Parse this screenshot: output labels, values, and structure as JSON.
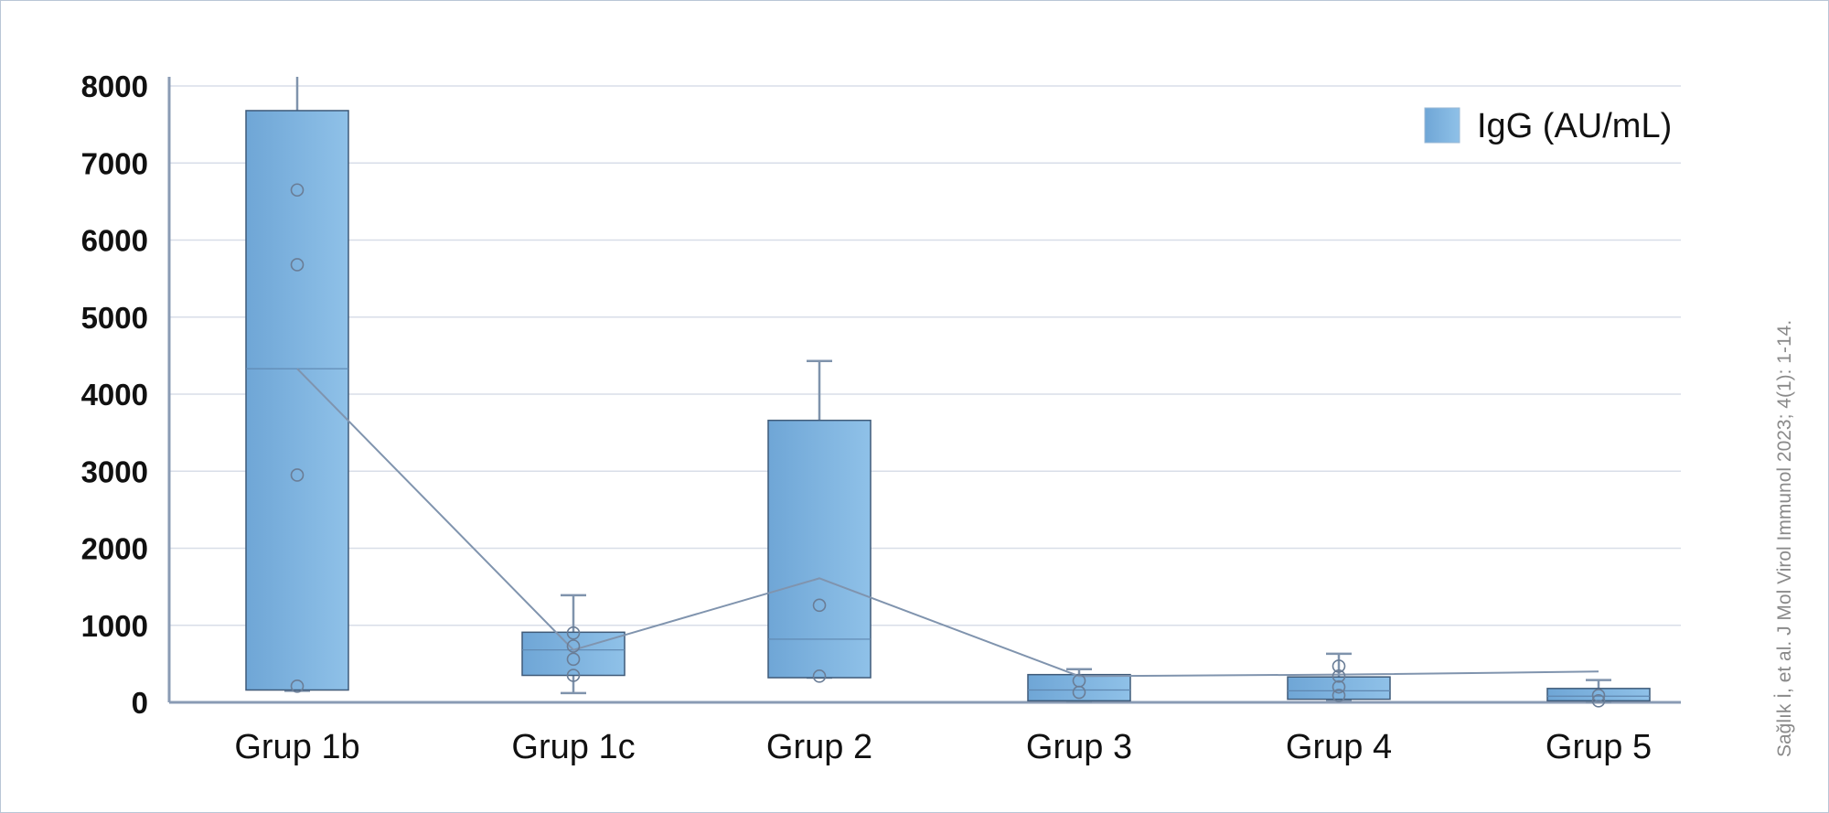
{
  "citation": "Sağlık İ, et al. J Mol Virol Immunol 2023; 4(1): 1-14.",
  "colors": {
    "box_fill_start": "#6fa6d6",
    "box_fill_end": "#8fc1e8",
    "box_stroke": "#3f5a78",
    "whisker": "#7f93ac",
    "mean_line": "#8094ae",
    "grid": "#d8dee8",
    "axis": "#8a9bb4"
  },
  "chart_data": {
    "type": "box",
    "legend": {
      "label": "IgG (AU/mL)",
      "position": "top-right"
    },
    "categories": [
      "Grup 1b",
      "Grup 1c",
      "Grup 2",
      "Grup 3",
      "Grup 4",
      "Grup 5"
    ],
    "yticks": [
      "0",
      "1000",
      "2000",
      "3000",
      "4000",
      "5000",
      "6000",
      "7000",
      "8000"
    ],
    "ylim": [
      0,
      8000
    ],
    "grid": true,
    "series": [
      {
        "name": "IgG (AU/mL)",
        "boxes": [
          {
            "category": "Grup 1b",
            "min": 150,
            "q1": 160,
            "median": 4330,
            "q3": 7680,
            "max": 8130,
            "mean": 4330,
            "points": [
              210,
              2950,
              5680,
              6650
            ]
          },
          {
            "category": "Grup 1c",
            "min": 120,
            "q1": 350,
            "median": 680,
            "q3": 910,
            "max": 1390,
            "mean": 680,
            "points": [
              350,
              560,
              730,
              900
            ]
          },
          {
            "category": "Grup 2",
            "min": 320,
            "q1": 320,
            "median": 820,
            "q3": 3660,
            "max": 4430,
            "mean": 1610,
            "points": [
              340,
              1260
            ]
          },
          {
            "category": "Grup 3",
            "min": 10,
            "q1": 20,
            "median": 160,
            "q3": 360,
            "max": 430,
            "mean": 340,
            "points": [
              130,
              280
            ]
          },
          {
            "category": "Grup 4",
            "min": 30,
            "q1": 40,
            "median": 150,
            "q3": 330,
            "max": 630,
            "mean": 360,
            "points": [
              90,
              200,
              340,
              470
            ]
          },
          {
            "category": "Grup 5",
            "min": 0,
            "q1": 20,
            "median": 80,
            "q3": 180,
            "max": 290,
            "mean": 400,
            "points": [
              20,
              90
            ]
          }
        ]
      }
    ]
  }
}
